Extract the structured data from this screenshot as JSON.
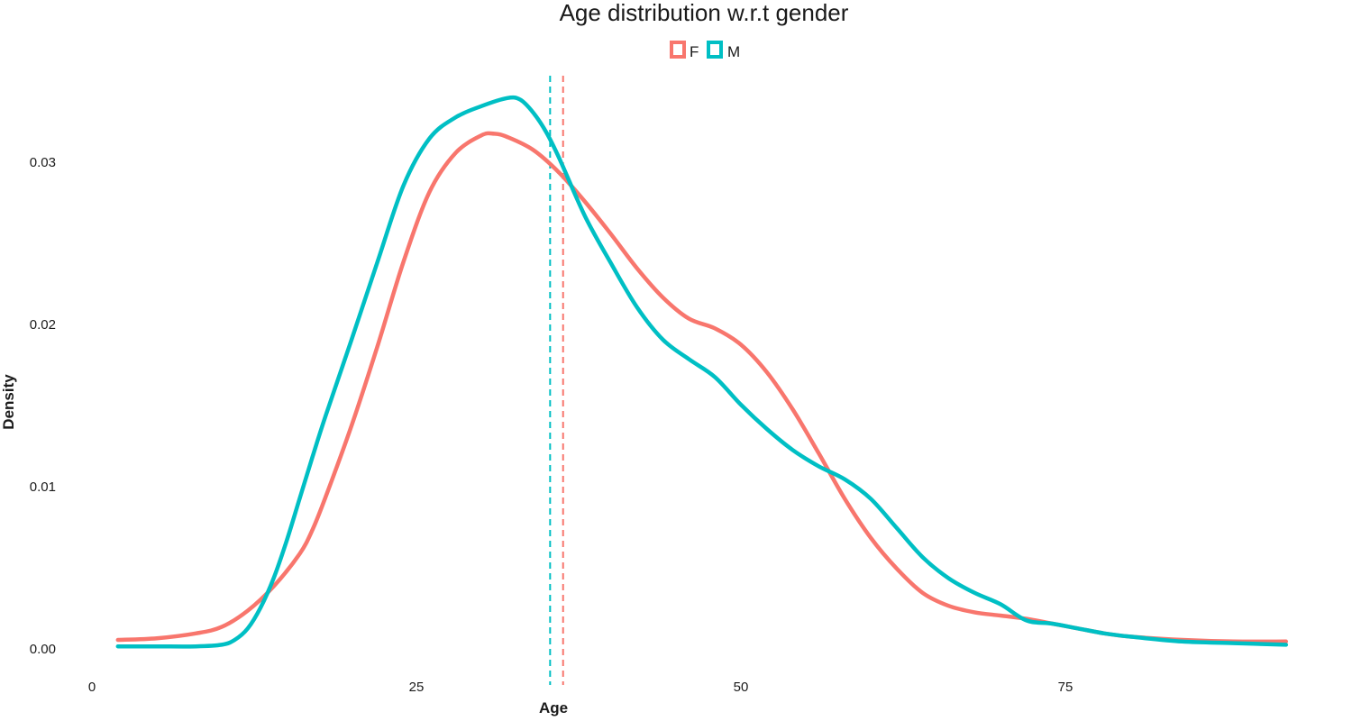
{
  "chart_data": {
    "type": "line",
    "title": "Age distribution w.r.t gender",
    "xlabel": "Age",
    "ylabel": "Density",
    "xlim": [
      0,
      92
    ],
    "ylim": [
      0,
      0.034
    ],
    "x_ticks": [
      0,
      25,
      50,
      75
    ],
    "x_tick_labels": [
      "0",
      "25",
      "50",
      "75"
    ],
    "y_ticks": [
      0.0,
      0.01,
      0.02,
      0.03
    ],
    "y_tick_labels": [
      "0.00",
      "0.01",
      "0.02",
      "0.03"
    ],
    "grid": false,
    "legend_position": "top",
    "series": [
      {
        "name": "F",
        "color": "#F8766D",
        "mean_line": 36.3,
        "x": [
          2,
          5,
          8,
          10,
          12,
          14,
          16,
          17,
          18,
          20,
          22,
          24,
          26,
          28,
          30,
          31,
          32,
          34,
          36,
          38,
          40,
          42,
          44,
          46,
          48,
          50,
          52,
          54,
          56,
          58,
          60,
          62,
          64,
          66,
          68,
          70,
          72,
          74,
          76,
          78,
          80,
          84,
          88,
          92
        ],
        "values": [
          0.0005,
          0.0006,
          0.0009,
          0.0013,
          0.0023,
          0.0038,
          0.0058,
          0.0073,
          0.0093,
          0.0137,
          0.0186,
          0.0238,
          0.0281,
          0.0305,
          0.0316,
          0.0317,
          0.0315,
          0.0307,
          0.0293,
          0.0275,
          0.0255,
          0.0234,
          0.0216,
          0.0203,
          0.0197,
          0.0187,
          0.017,
          0.0147,
          0.012,
          0.0092,
          0.0068,
          0.0049,
          0.0034,
          0.0026,
          0.0022,
          0.002,
          0.0018,
          0.0015,
          0.0012,
          0.0009,
          0.0007,
          0.0005,
          0.0004,
          0.0004
        ]
      },
      {
        "name": "M",
        "color": "#00BFC4",
        "mean_line": 35.3,
        "x": [
          2,
          5,
          8,
          10,
          11,
          12,
          13,
          14,
          15,
          16,
          17,
          18,
          20,
          22,
          24,
          26,
          28,
          30,
          32,
          33,
          34,
          35,
          36,
          38,
          40,
          42,
          44,
          46,
          48,
          50,
          52,
          54,
          56,
          58,
          60,
          62,
          64,
          66,
          68,
          70,
          72,
          74,
          76,
          78,
          80,
          84,
          88,
          92
        ],
        "values": [
          0.0001,
          0.0001,
          0.0001,
          0.0002,
          0.0005,
          0.0012,
          0.0025,
          0.0043,
          0.0066,
          0.0092,
          0.0118,
          0.0143,
          0.019,
          0.0238,
          0.0285,
          0.0314,
          0.0327,
          0.0334,
          0.0339,
          0.0338,
          0.033,
          0.0318,
          0.0302,
          0.0266,
          0.0237,
          0.021,
          0.019,
          0.0178,
          0.0167,
          0.015,
          0.0135,
          0.0122,
          0.0112,
          0.0104,
          0.0092,
          0.0074,
          0.0056,
          0.0043,
          0.0034,
          0.0027,
          0.0017,
          0.0015,
          0.0012,
          0.0009,
          0.0007,
          0.0004,
          0.0003,
          0.0002
        ]
      }
    ]
  }
}
